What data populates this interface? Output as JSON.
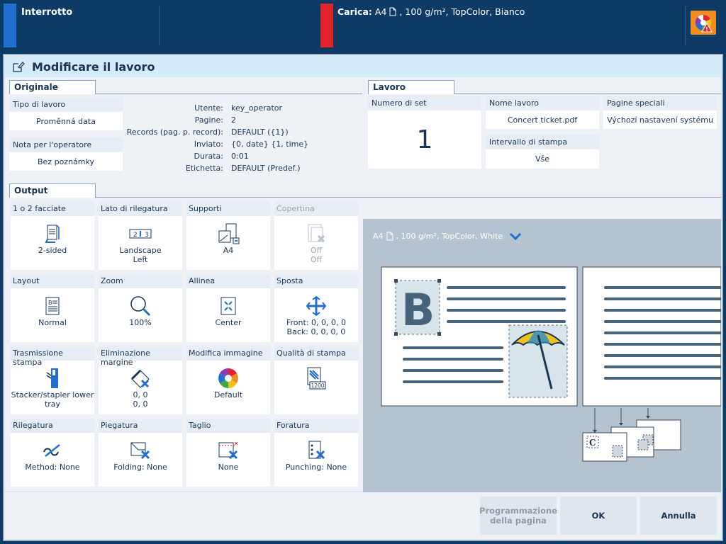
{
  "topbar": {
    "status": "Interrotto",
    "load_label": "Carica:",
    "load_value": "A4 ",
    "load_rest": ", 100 g/m², TopColor, Bianco"
  },
  "dialog": {
    "title": "Modificare il lavoro",
    "originale": {
      "tab": "Originale",
      "tipo_label": "Tipo di lavoro",
      "tipo_value": "Proměnná data",
      "nota_label": "Nota per l'operatore",
      "nota_value": "Bez poznámky",
      "details": [
        {
          "k": "Utente:",
          "v": "key_operator"
        },
        {
          "k": "Pagine:",
          "v": "2"
        },
        {
          "k": "Records (pag. p. record):",
          "v": "DEFAULT ({1})"
        },
        {
          "k": "Inviato:",
          "v": "{0, date} {1, time}"
        },
        {
          "k": "Durata:",
          "v": "0:01"
        },
        {
          "k": "Etichetta:",
          "v": "DEFAULT (Predef.)"
        }
      ]
    },
    "lavoro": {
      "tab": "Lavoro",
      "set_label": "Numero di set",
      "set_value": "1",
      "nome_label": "Nome lavoro",
      "nome_value": "Concert ticket.pdf",
      "intervallo_label": "Intervallo di stampa",
      "intervallo_value": "Vše",
      "speciali_label": "Pagine speciali",
      "speciali_value": "Výchozí nastavení systému"
    },
    "output": {
      "tab": "Output",
      "cells": [
        {
          "title": "1 o 2 facciate",
          "l1": "2-sided",
          "l2": ""
        },
        {
          "title": "Lato di rilegatura",
          "l1": "Landscape",
          "l2": "Left"
        },
        {
          "title": "Supporti",
          "l1": "A4",
          "l2": ""
        },
        {
          "title": "Copertina",
          "l1": "Off",
          "l2": "Off"
        },
        {
          "title": "Layout",
          "l1": "Normal",
          "l2": ""
        },
        {
          "title": "Zoom",
          "l1": "100%",
          "l2": ""
        },
        {
          "title": "Allinea",
          "l1": "Center",
          "l2": ""
        },
        {
          "title": "Sposta",
          "l1": "Front: 0, 0, 0, 0",
          "l2": "Back: 0, 0, 0, 0"
        },
        {
          "title": "Trasmissione stampa",
          "l1": "Stacker/stapler lower",
          "l2": "tray"
        },
        {
          "title": "Eliminazione margine",
          "l1": "0, 0",
          "l2": "0, 0"
        },
        {
          "title": "Modifica immagine",
          "l1": "Default",
          "l2": ""
        },
        {
          "title": "Qualità di stampa",
          "l1": "",
          "l2": "",
          "badge": "1200"
        },
        {
          "title": "Rilegatura",
          "l1": "Method: None",
          "l2": ""
        },
        {
          "title": "Piegatura",
          "l1": "Folding: None",
          "l2": ""
        },
        {
          "title": "Taglio",
          "l1": "None",
          "l2": ""
        },
        {
          "title": "Foratura",
          "l1": "Punching: None",
          "l2": ""
        }
      ]
    },
    "preview": {
      "media_size": "A4",
      "media_rest": ", 100 g/m², TopColor, White",
      "letter_b": "B",
      "letter_c": "C"
    },
    "footer": {
      "programmazione": "Programmazione della pagina",
      "ok": "OK",
      "annulla": "Annulla"
    }
  }
}
